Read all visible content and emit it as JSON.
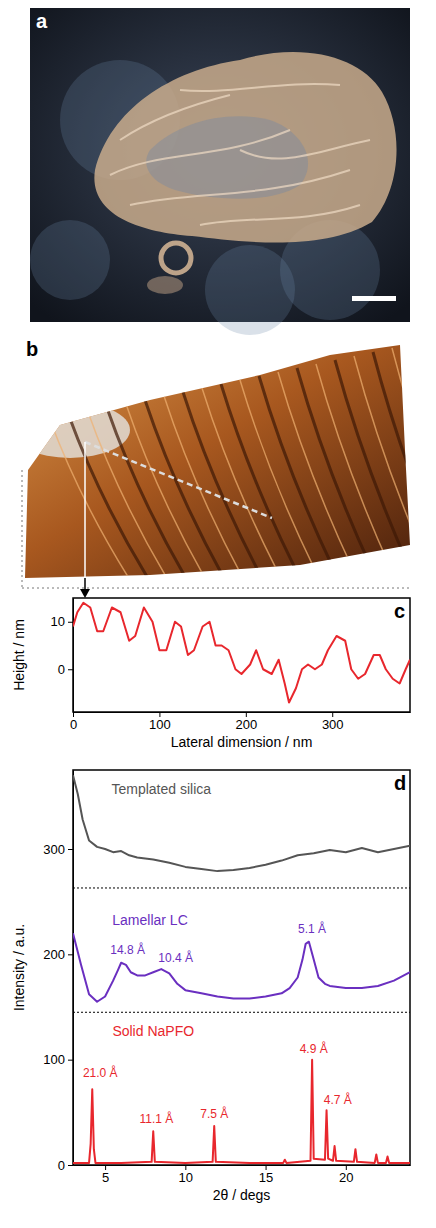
{
  "chart_data": [
    {
      "type": "image",
      "label": "a"
    },
    {
      "type": "surface",
      "label": "b"
    },
    {
      "type": "line",
      "label": "c",
      "xlabel": "Lateral dimension / nm",
      "ylabel": "Height / nm",
      "color": "#e8272d",
      "xlim": [
        0,
        390
      ],
      "xticks": [
        0,
        100,
        200,
        300
      ],
      "ylim": [
        -9,
        15
      ],
      "yticks": [
        0,
        10
      ],
      "x": [
        0,
        5,
        12,
        20,
        28,
        35,
        45,
        55,
        65,
        72,
        82,
        92,
        100,
        108,
        118,
        125,
        133,
        140,
        150,
        158,
        165,
        172,
        180,
        188,
        195,
        205,
        212,
        220,
        230,
        238,
        245,
        250,
        258,
        265,
        272,
        280,
        288,
        295,
        305,
        315,
        322,
        330,
        338,
        348,
        355,
        362,
        370,
        378,
        385,
        390
      ],
      "values": [
        9,
        12,
        14,
        13,
        8,
        8,
        13,
        12,
        6,
        7,
        13,
        10,
        4,
        4,
        10,
        9,
        3,
        4,
        9,
        10,
        5,
        5,
        4,
        0,
        -1,
        1,
        4,
        0,
        -1,
        2,
        -3,
        -7,
        -4,
        0,
        1,
        0,
        1,
        4,
        7,
        6,
        0,
        -2,
        -1,
        3,
        3,
        0,
        -2,
        -3,
        0,
        2
      ]
    },
    {
      "type": "line",
      "label": "d",
      "xlabel": "2θ / degs",
      "ylabel": "Intensity / a.u.",
      "xlim": [
        3,
        24
      ],
      "xticks": [
        5,
        10,
        15,
        20
      ],
      "ylim": [
        0,
        375
      ],
      "yticks": [
        0,
        100,
        200,
        300
      ],
      "series": [
        {
          "name": "Templated silica",
          "color": "#555555",
          "baseline": 263,
          "label_at": [
            8.5,
            352
          ],
          "x": [
            3,
            3.3,
            3.6,
            4,
            4.5,
            5,
            5.5,
            6,
            6.5,
            7,
            8,
            9,
            10,
            11,
            12,
            13,
            14,
            15,
            16,
            17,
            18,
            19,
            20,
            21,
            22,
            23,
            24
          ],
          "values": [
            370,
            352,
            328,
            308,
            302,
            300,
            297,
            298,
            294,
            292,
            290,
            287,
            283,
            281,
            279,
            280,
            282,
            285,
            289,
            294,
            296,
            299,
            297,
            301,
            297,
            300,
            303
          ]
        },
        {
          "name": "Lamellar LC",
          "color": "#6a2fc0",
          "baseline": 145,
          "label_at": [
            7.8,
            228
          ],
          "x": [
            3,
            3.5,
            4,
            4.5,
            5,
            5.5,
            5.8,
            6,
            6.3,
            6.6,
            7,
            7.5,
            8,
            8.5,
            9,
            9.5,
            10,
            11,
            12,
            13,
            14,
            15,
            16,
            16.5,
            17,
            17.3,
            17.5,
            17.7,
            18,
            18.3,
            18.7,
            19,
            20,
            21,
            22,
            23,
            24
          ],
          "values": [
            220,
            190,
            162,
            155,
            160,
            175,
            185,
            192,
            190,
            183,
            180,
            180,
            183,
            186,
            182,
            172,
            166,
            163,
            160,
            158,
            158,
            160,
            163,
            168,
            178,
            195,
            210,
            212,
            195,
            178,
            172,
            170,
            168,
            168,
            170,
            175,
            183
          ]
        },
        {
          "name": "Solid NaPFO",
          "color": "#e8272d",
          "label_at": [
            8,
            122
          ],
          "x": [
            3,
            4,
            4.1,
            4.2,
            4.3,
            4.4,
            6,
            7.9,
            8.0,
            8.1,
            10,
            11.7,
            11.8,
            11.9,
            14,
            16.1,
            16.2,
            16.3,
            17.8,
            17.9,
            18.0,
            18.7,
            18.8,
            18.9,
            19.2,
            19.3,
            19.4,
            20.5,
            20.6,
            20.7,
            21.8,
            21.9,
            22.0,
            22.5,
            22.6,
            22.7,
            24
          ],
          "values": [
            2,
            2,
            20,
            72,
            15,
            2,
            2,
            3,
            32,
            3,
            2,
            3,
            37,
            3,
            2,
            2,
            5,
            2,
            4,
            100,
            6,
            5,
            52,
            6,
            4,
            18,
            4,
            3,
            15,
            3,
            2,
            10,
            2,
            2,
            8,
            2,
            2
          ]
        }
      ],
      "annotations": [
        {
          "text": "14.8 Å",
          "x": 6.4,
          "y": 200,
          "color": "#6a2fc0"
        },
        {
          "text": "10.4 Å",
          "x": 9.4,
          "y": 193,
          "color": "#6a2fc0"
        },
        {
          "text": "5.1 Å",
          "x": 17.9,
          "y": 220,
          "color": "#6a2fc0"
        },
        {
          "text": "21.0 Å",
          "x": 4.7,
          "y": 84,
          "color": "#e8272d"
        },
        {
          "text": "11.1 Å",
          "x": 8.2,
          "y": 40,
          "color": "#e8272d"
        },
        {
          "text": "7.5 Å",
          "x": 11.8,
          "y": 45,
          "color": "#e8272d"
        },
        {
          "text": "4.9 Å",
          "x": 18.0,
          "y": 106,
          "color": "#e8272d"
        },
        {
          "text": "4.7 Å",
          "x": 19.5,
          "y": 58,
          "color": "#e8272d"
        }
      ]
    }
  ]
}
